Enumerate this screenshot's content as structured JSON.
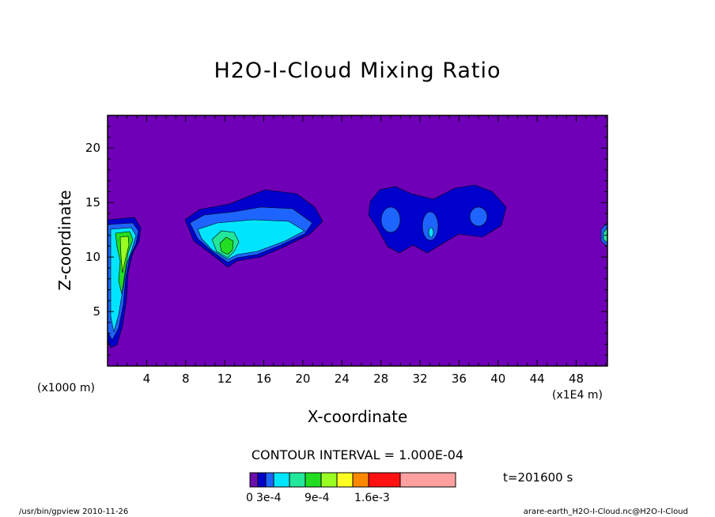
{
  "chart_data": {
    "type": "contour",
    "title": "H2O-I-Cloud Mixing Ratio",
    "xlabel": "X-coordinate",
    "ylabel": "Z-coordinate",
    "x_unit_label": "(x1E4 m)",
    "y_unit_label": "(x1000 m)",
    "xlim": [
      0,
      51.2
    ],
    "ylim": [
      0,
      23
    ],
    "x_ticks": [
      4,
      8,
      12,
      16,
      20,
      24,
      28,
      32,
      36,
      40,
      44,
      48
    ],
    "y_ticks": [
      5,
      10,
      15,
      20
    ],
    "contour_interval": "CONTOUR INTERVAL = 1.000E-04",
    "time_label": "t=201600 s",
    "colorbar": {
      "labels": [
        "0",
        "3e-4",
        "9e-4",
        "1.6e-3"
      ],
      "colors": [
        "#6a0dad",
        "#0000cd",
        "#1e64ff",
        "#00e5ff",
        "#22e69a",
        "#22dd22",
        "#99ff22",
        "#ffff22",
        "#ff8800",
        "#ff1111",
        "#ffa0a0"
      ]
    },
    "background_color": "#7000b8"
  },
  "footer": {
    "left": "/usr/bin/gpview  2010-11-26",
    "right": "arare-earth_H2O-I-Cloud.nc@H2O-I-Cloud"
  }
}
